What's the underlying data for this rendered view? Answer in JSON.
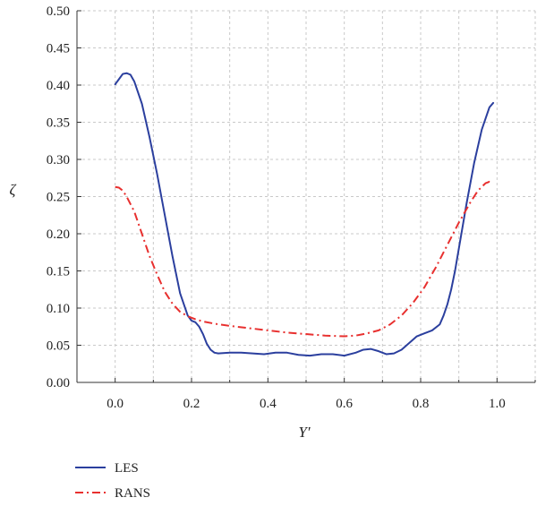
{
  "chart_data": {
    "type": "line",
    "xlabel": "Y′",
    "ylabel": "ζ",
    "xlim": [
      -0.1,
      1.1
    ],
    "ylim": [
      0.0,
      0.5
    ],
    "x_ticks": [
      "0.0",
      "0.2",
      "0.4",
      "0.6",
      "0.8",
      "1.0"
    ],
    "x_tick_values": [
      0.0,
      0.2,
      0.4,
      0.6,
      0.8,
      1.0
    ],
    "y_ticks": [
      "0.00",
      "0.05",
      "0.10",
      "0.15",
      "0.20",
      "0.25",
      "0.30",
      "0.35",
      "0.40",
      "0.45",
      "0.50"
    ],
    "y_tick_values": [
      0.0,
      0.05,
      0.1,
      0.15,
      0.2,
      0.25,
      0.3,
      0.35,
      0.4,
      0.45,
      0.5
    ],
    "grid": true,
    "legend_position": "bottom-left",
    "series": [
      {
        "name": "LES",
        "color": "#2b3f9e",
        "style": "solid",
        "x": [
          0.0,
          0.01,
          0.02,
          0.03,
          0.04,
          0.05,
          0.07,
          0.09,
          0.11,
          0.13,
          0.15,
          0.17,
          0.19,
          0.2,
          0.21,
          0.22,
          0.23,
          0.24,
          0.25,
          0.26,
          0.27,
          0.3,
          0.33,
          0.36,
          0.39,
          0.42,
          0.45,
          0.48,
          0.51,
          0.54,
          0.57,
          0.6,
          0.63,
          0.65,
          0.67,
          0.69,
          0.71,
          0.73,
          0.75,
          0.77,
          0.79,
          0.81,
          0.83,
          0.85,
          0.86,
          0.87,
          0.88,
          0.89,
          0.9,
          0.92,
          0.94,
          0.96,
          0.98,
          0.99
        ],
        "y": [
          0.401,
          0.408,
          0.415,
          0.416,
          0.414,
          0.405,
          0.375,
          0.33,
          0.28,
          0.225,
          0.17,
          0.12,
          0.09,
          0.083,
          0.081,
          0.075,
          0.065,
          0.052,
          0.044,
          0.04,
          0.039,
          0.04,
          0.04,
          0.039,
          0.038,
          0.04,
          0.04,
          0.037,
          0.036,
          0.038,
          0.038,
          0.036,
          0.04,
          0.044,
          0.045,
          0.042,
          0.038,
          0.039,
          0.044,
          0.053,
          0.062,
          0.066,
          0.07,
          0.078,
          0.09,
          0.105,
          0.125,
          0.15,
          0.18,
          0.24,
          0.295,
          0.34,
          0.37,
          0.376
        ]
      },
      {
        "name": "RANS",
        "color": "#e8302f",
        "style": "dash-dot",
        "x": [
          0.0,
          0.01,
          0.02,
          0.03,
          0.05,
          0.07,
          0.09,
          0.11,
          0.13,
          0.15,
          0.17,
          0.19,
          0.21,
          0.23,
          0.26,
          0.3,
          0.35,
          0.4,
          0.45,
          0.5,
          0.55,
          0.6,
          0.63,
          0.66,
          0.69,
          0.72,
          0.75,
          0.78,
          0.81,
          0.84,
          0.87,
          0.9,
          0.93,
          0.95,
          0.97,
          0.98,
          0.99
        ],
        "y": [
          0.263,
          0.262,
          0.258,
          0.25,
          0.23,
          0.2,
          0.17,
          0.145,
          0.122,
          0.106,
          0.095,
          0.089,
          0.085,
          0.082,
          0.079,
          0.076,
          0.073,
          0.07,
          0.067,
          0.065,
          0.063,
          0.062,
          0.063,
          0.066,
          0.07,
          0.078,
          0.09,
          0.107,
          0.128,
          0.155,
          0.185,
          0.215,
          0.242,
          0.258,
          0.268,
          0.27,
          0.269
        ]
      }
    ]
  }
}
